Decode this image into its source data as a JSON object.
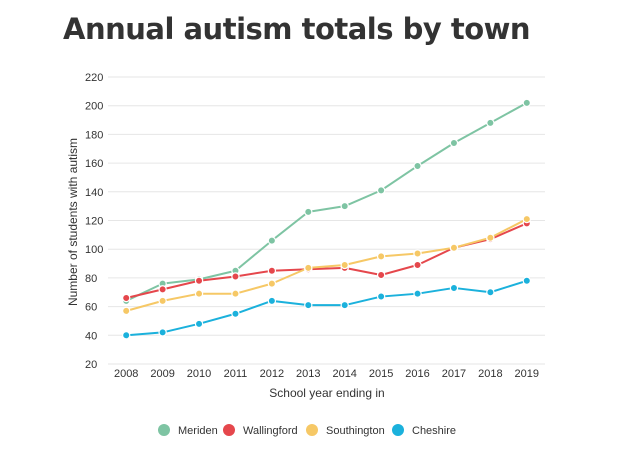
{
  "chart_data": {
    "type": "line",
    "title": "Annual autism totals by town",
    "xlabel": "School year ending in",
    "ylabel": "Number of students with autism",
    "x": [
      "2008",
      "2009",
      "2010",
      "2011",
      "2012",
      "2013",
      "2014",
      "2015",
      "2016",
      "2017",
      "2018",
      "2019"
    ],
    "yticks": [
      20,
      40,
      60,
      80,
      100,
      120,
      140,
      160,
      180,
      200,
      220
    ],
    "ylim": [
      20,
      220
    ],
    "grid": true,
    "legend_position": "bottom",
    "series": [
      {
        "name": "Meriden",
        "color": "#7ec4a3",
        "values": [
          64,
          76,
          79,
          85,
          106,
          126,
          130,
          141,
          158,
          174,
          188,
          202
        ]
      },
      {
        "name": "Wallingford",
        "color": "#e5474c",
        "values": [
          66,
          72,
          78,
          81,
          85,
          86,
          87,
          82,
          89,
          101,
          107,
          118
        ]
      },
      {
        "name": "Southington",
        "color": "#f6c866",
        "values": [
          57,
          64,
          69,
          69,
          76,
          87,
          89,
          95,
          97,
          101,
          108,
          121
        ]
      },
      {
        "name": "Cheshire",
        "color": "#1bb1dc",
        "values": [
          40,
          42,
          48,
          55,
          64,
          61,
          61,
          67,
          69,
          73,
          70,
          78
        ]
      }
    ]
  }
}
